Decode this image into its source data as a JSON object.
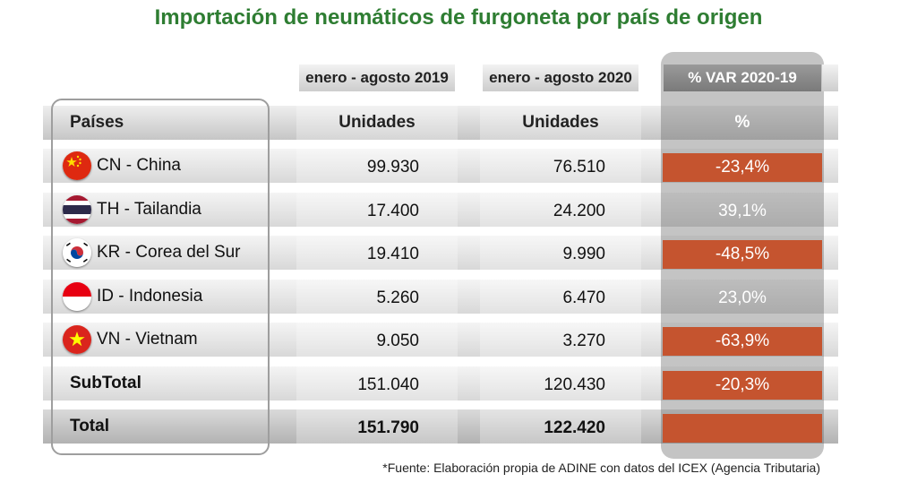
{
  "title": "Importación de neumáticos de furgoneta por país de origen",
  "colors": {
    "title": "#2e7d32",
    "negative": "#c5542f",
    "variation_panel": "#7d7d7d"
  },
  "column_headers": {
    "period_2019": "enero - agosto 2019",
    "period_2020": "enero - agosto 2020",
    "variation": "% VAR 2020-19"
  },
  "header_row": {
    "country": "Países",
    "units_2019": "Unidades",
    "units_2020": "Unidades",
    "percent": "%"
  },
  "rows": [
    {
      "flag": "china-flag-icon",
      "country": "CN - China",
      "units_2019": "99.930",
      "units_2020": "76.510",
      "variation": "-23,4%",
      "negative": true
    },
    {
      "flag": "thailand-flag-icon",
      "country": "TH - Tailandia",
      "units_2019": "17.400",
      "units_2020": "24.200",
      "variation": "39,1%",
      "negative": false
    },
    {
      "flag": "south-korea-flag-icon",
      "country": "KR - Corea del Sur",
      "units_2019": "19.410",
      "units_2020": "9.990",
      "variation": "-48,5%",
      "negative": true
    },
    {
      "flag": "indonesia-flag-icon",
      "country": "ID - Indonesia",
      "units_2019": "5.260",
      "units_2020": "6.470",
      "variation": "23,0%",
      "negative": false
    },
    {
      "flag": "vietnam-flag-icon",
      "country": "VN - Vietnam",
      "units_2019": "9.050",
      "units_2020": "3.270",
      "variation": "-63,9%",
      "negative": true
    }
  ],
  "subtotal": {
    "label": "SubTotal",
    "units_2019": "151.040",
    "units_2020": "120.430",
    "variation": "-20,3%",
    "negative": true
  },
  "total": {
    "label": "Total",
    "units_2019": "151.790",
    "units_2020": "122.420",
    "variation": "",
    "negative": true
  },
  "source": "*Fuente: Elaboración propia de ADINE con datos del ICEX (Agencia Tributaria)",
  "chart_data": {
    "type": "table",
    "title": "Importación de neumáticos de furgoneta por país de origen",
    "columns": [
      "Países",
      "enero - agosto 2019 (Unidades)",
      "enero - agosto 2020 (Unidades)",
      "% VAR 2020-19 (%)"
    ],
    "categories": [
      "CN - China",
      "TH - Tailandia",
      "KR - Corea del Sur",
      "ID - Indonesia",
      "VN - Vietnam",
      "SubTotal",
      "Total"
    ],
    "series": [
      {
        "name": "enero - agosto 2019",
        "values": [
          99930,
          17400,
          19410,
          5260,
          9050,
          151040,
          151790
        ]
      },
      {
        "name": "enero - agosto 2020",
        "values": [
          76510,
          24200,
          9990,
          6470,
          3270,
          120430,
          122420
        ]
      },
      {
        "name": "% VAR 2020-19",
        "values": [
          -23.4,
          39.1,
          -48.5,
          23.0,
          -63.9,
          -20.3,
          null
        ]
      }
    ]
  }
}
